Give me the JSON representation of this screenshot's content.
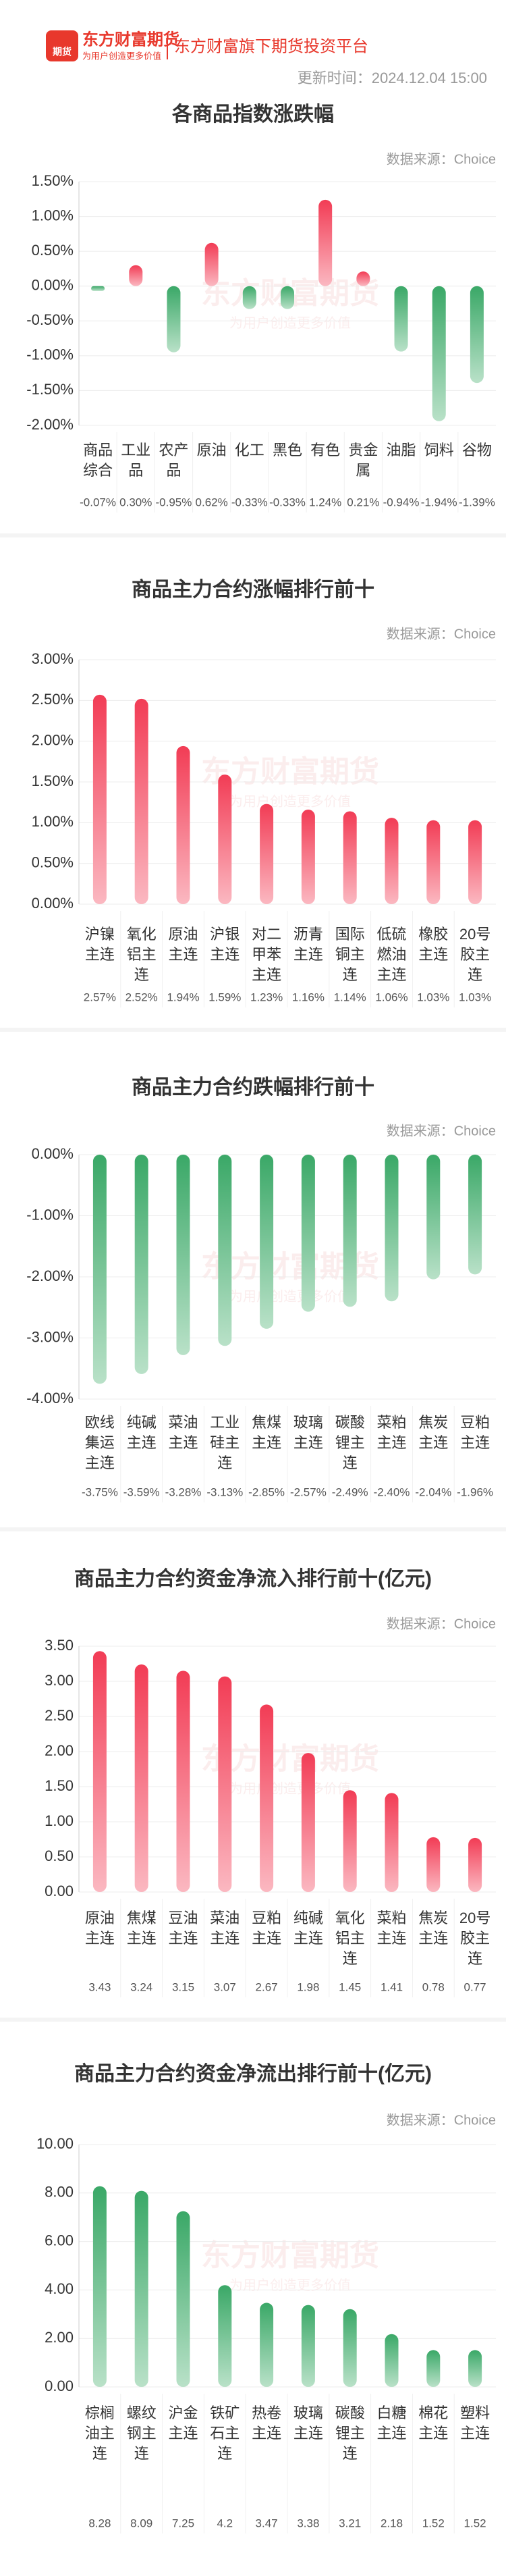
{
  "header": {
    "logo_icon": "期货",
    "logo_name": "东方财富期货",
    "logo_slogan": "为用户创造更多价值",
    "platform": "东方财富旗下期货投资平台",
    "update_time": "更新时间：2024.12.04 15:00"
  },
  "chart_data": [
    {
      "type": "bar",
      "title": "各商品指数涨跌幅",
      "source": "数据来源：Choice",
      "categories": [
        "商品综合",
        "工业品",
        "农产品",
        "原油",
        "化工",
        "黑色",
        "有色",
        "贵金属",
        "油脂",
        "饲料",
        "谷物"
      ],
      "values": [
        -0.07,
        0.3,
        -0.95,
        0.62,
        -0.33,
        -0.33,
        1.24,
        0.21,
        -0.94,
        -1.94,
        -1.39
      ],
      "value_labels": [
        "-0.07%",
        "0.30%",
        "-0.95%",
        "0.62%",
        "-0.33%",
        "-0.33%",
        "1.24%",
        "0.21%",
        "-0.94%",
        "-1.94%",
        "-1.39%"
      ],
      "ylim": [
        -2,
        1.5
      ],
      "yticks": [
        {
          "value": 1.5,
          "label": "1.50%"
        },
        {
          "value": 1,
          "label": "1.00%"
        },
        {
          "value": 0.5,
          "label": "0.50%"
        },
        {
          "value": 0,
          "label": "0.00%"
        },
        {
          "value": -0.5,
          "label": "-0.50%"
        },
        {
          "value": -1,
          "label": "-1.00%"
        },
        {
          "value": -1.5,
          "label": "-1.50%"
        },
        {
          "value": -2,
          "label": "-2.00%"
        }
      ],
      "grid": true,
      "colors": {
        "positive": "#f23c55",
        "negative": "#3aa867"
      }
    },
    {
      "type": "bar",
      "title": "商品主力合约涨幅排行前十",
      "source": "数据来源：Choice",
      "categories": [
        "沪镍主连",
        "氧化铝主连",
        "原油主连",
        "沪银主连",
        "对二甲苯主连",
        "沥青主连",
        "国际铜主连",
        "低硫燃油主连",
        "橡胶主连",
        "20号胶主连"
      ],
      "values": [
        2.57,
        2.52,
        1.94,
        1.59,
        1.23,
        1.16,
        1.14,
        1.06,
        1.03,
        1.03
      ],
      "value_labels": [
        "2.57%",
        "2.52%",
        "1.94%",
        "1.59%",
        "1.23%",
        "1.16%",
        "1.14%",
        "1.06%",
        "1.03%",
        "1.03%"
      ],
      "ylim": [
        0,
        3
      ],
      "yticks": [
        {
          "value": 3,
          "label": "3.00%"
        },
        {
          "value": 2.5,
          "label": "2.50%"
        },
        {
          "value": 2,
          "label": "2.00%"
        },
        {
          "value": 1.5,
          "label": "1.50%"
        },
        {
          "value": 1,
          "label": "1.00%"
        },
        {
          "value": 0.5,
          "label": "0.50%"
        },
        {
          "value": 0,
          "label": "0.00%"
        }
      ],
      "grid": true,
      "colors": {
        "positive": "#f23c55",
        "negative": "#3aa867"
      }
    },
    {
      "type": "bar",
      "title": "商品主力合约跌幅排行前十",
      "source": "数据来源：Choice",
      "categories": [
        "欧线集运主连",
        "纯碱主连",
        "菜油主连",
        "工业硅主连",
        "焦煤主连",
        "玻璃主连",
        "碳酸锂主连",
        "菜粕主连",
        "焦炭主连",
        "豆粕主连"
      ],
      "values": [
        -3.75,
        -3.59,
        -3.28,
        -3.13,
        -2.85,
        -2.57,
        -2.49,
        -2.4,
        -2.04,
        -1.96
      ],
      "value_labels": [
        "-3.75%",
        "-3.59%",
        "-3.28%",
        "-3.13%",
        "-2.85%",
        "-2.57%",
        "-2.49%",
        "-2.40%",
        "-2.04%",
        "-1.96%"
      ],
      "ylim": [
        -4,
        0
      ],
      "yticks": [
        {
          "value": 0,
          "label": "0.00%"
        },
        {
          "value": -1,
          "label": "-1.00%"
        },
        {
          "value": -2,
          "label": "-2.00%"
        },
        {
          "value": -3,
          "label": "-3.00%"
        },
        {
          "value": -4,
          "label": "-4.00%"
        }
      ],
      "grid": true,
      "colors": {
        "positive": "#f23c55",
        "negative": "#3aa867"
      }
    },
    {
      "type": "bar",
      "title": "商品主力合约资金净流入排行前十(亿元)",
      "source": "数据来源：Choice",
      "categories": [
        "原油主连",
        "焦煤主连",
        "豆油主连",
        "菜油主连",
        "豆粕主连",
        "纯碱主连",
        "氧化铝主连",
        "菜粕主连",
        "焦炭主连",
        "20号胶主连"
      ],
      "values": [
        3.43,
        3.24,
        3.15,
        3.07,
        2.67,
        1.98,
        1.45,
        1.41,
        0.78,
        0.77
      ],
      "ylim": [
        0,
        3.5
      ],
      "yticks": [
        {
          "value": 3.5,
          "label": "3.50"
        },
        {
          "value": 3,
          "label": "3.00"
        },
        {
          "value": 2.5,
          "label": "2.50"
        },
        {
          "value": 2,
          "label": "2.00"
        },
        {
          "value": 1.5,
          "label": "1.50"
        },
        {
          "value": 1,
          "label": "1.00"
        },
        {
          "value": 0.5,
          "label": "0.50"
        },
        {
          "value": 0,
          "label": "0.00"
        }
      ],
      "grid": true,
      "colors": {
        "positive": "#f23c55",
        "negative": "#3aa867"
      }
    },
    {
      "type": "bar",
      "title": "商品主力合约资金净流出排行前十(亿元)",
      "source": "数据来源：Choice",
      "categories": [
        "棕榈油主连",
        "螺纹钢主连",
        "沪金主连",
        "铁矿石主连",
        "热卷主连",
        "玻璃主连",
        "碳酸锂主连",
        "白糖主连",
        "棉花主连",
        "塑料主连"
      ],
      "values": [
        8.28,
        8.09,
        7.25,
        4.2,
        3.47,
        3.38,
        3.21,
        2.18,
        1.52,
        1.52
      ],
      "ylim": [
        0,
        10
      ],
      "yticks": [
        {
          "value": 10,
          "label": "10.00"
        },
        {
          "value": 8,
          "label": "8.00"
        },
        {
          "value": 6,
          "label": "6.00"
        },
        {
          "value": 4,
          "label": "4.00"
        },
        {
          "value": 2,
          "label": "2.00"
        },
        {
          "value": 0,
          "label": "0.00"
        }
      ],
      "grid": true,
      "colors": {
        "positive": "#3aa867",
        "negative": "#3aa867"
      }
    }
  ]
}
